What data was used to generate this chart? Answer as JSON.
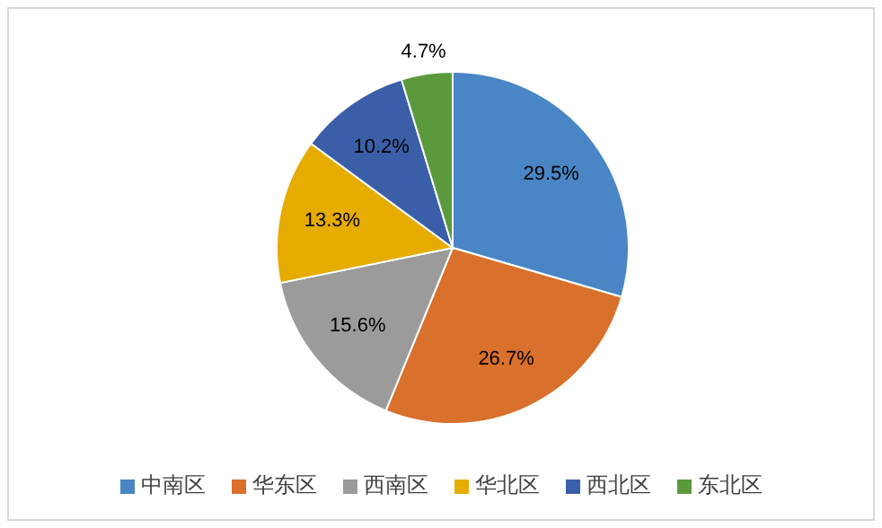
{
  "chart_data": {
    "type": "pie",
    "categories": [
      "中南区",
      "华东区",
      "西南区",
      "华北区",
      "西北区",
      "东北区"
    ],
    "values": [
      29.5,
      26.7,
      15.6,
      13.3,
      10.2,
      4.7
    ],
    "colors": [
      "#4a86c5",
      "#d9702b",
      "#9b9b9b",
      "#e6ac00",
      "#3a5fa8",
      "#5a9a3c"
    ],
    "value_labels": [
      "29.5%",
      "26.7%",
      "15.6%",
      "13.3%",
      "10.2%",
      "4.7%"
    ],
    "legend": "bottom"
  }
}
